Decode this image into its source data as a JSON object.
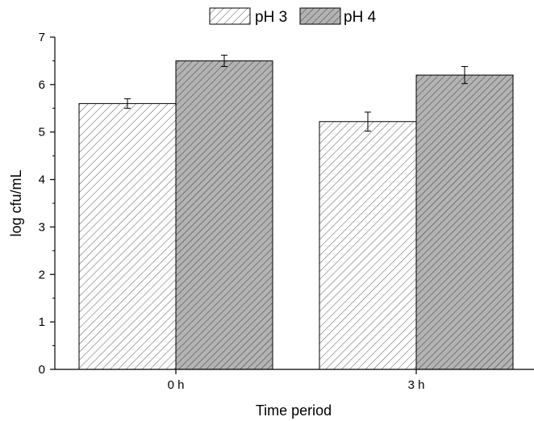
{
  "chart_data": {
    "type": "bar",
    "categories": [
      "0 h",
      "3 h"
    ],
    "series": [
      {
        "name": "pH 3",
        "values": [
          5.6,
          5.22
        ],
        "errors": [
          0.1,
          0.2
        ],
        "fill": "#ffffff",
        "hatch": "#555555"
      },
      {
        "name": "pH 4",
        "values": [
          6.5,
          6.2
        ],
        "errors": [
          0.12,
          0.18
        ],
        "fill": "#b3b3b3",
        "hatch": "#4a4a4a"
      }
    ],
    "xlabel": "Time period",
    "ylabel": "log cfu/mL",
    "ylim": [
      0,
      7
    ],
    "yticks": [
      "0",
      "1",
      "2",
      "3",
      "4",
      "5",
      "6",
      "7"
    ],
    "grid": false,
    "legend_position": "top-center"
  }
}
